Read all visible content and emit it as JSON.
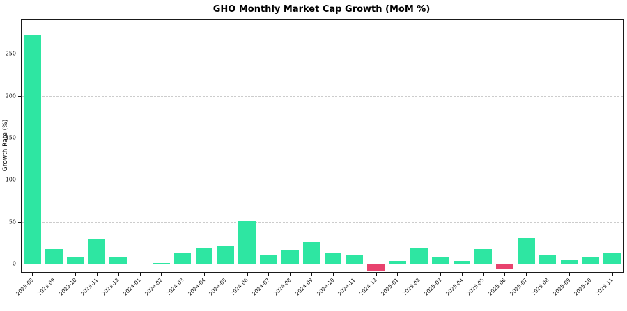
{
  "figure": {
    "title": "GHO Monthly Market Cap Growth (MoM %)",
    "ylabel": "Growth Rate (%)"
  },
  "chart_data": {
    "type": "bar",
    "title": "GHO Monthly Market Cap Growth (MoM %)",
    "xlabel": "",
    "ylabel": "Growth Rate (%)",
    "categories": [
      "2023-08",
      "2023-09",
      "2023-10",
      "2023-11",
      "2023-12",
      "2024-01",
      "2024-02",
      "2024-03",
      "2024-04",
      "2024-05",
      "2024-06",
      "2024-07",
      "2024-08",
      "2024-09",
      "2024-10",
      "2024-11",
      "2024-12",
      "2025-01",
      "2025-02",
      "2025-03",
      "2025-04",
      "2025-05",
      "2025-06",
      "2025-07",
      "2025-08",
      "2025-09",
      "2025-10",
      "2025-11"
    ],
    "values": [
      272,
      17,
      8,
      29,
      8,
      0.3,
      0.5,
      13,
      19,
      21,
      51,
      11,
      16,
      26,
      13,
      11,
      -8,
      3,
      19,
      7,
      3,
      17,
      -7,
      31,
      11,
      4,
      8,
      13
    ],
    "yticks": [
      0,
      50,
      100,
      150,
      200,
      250
    ],
    "ylim": [
      -10,
      290
    ],
    "grid": "horizontal dashed",
    "legend": "none",
    "positive_color": "#2ee6a2",
    "negative_color": "#e8436e"
  }
}
